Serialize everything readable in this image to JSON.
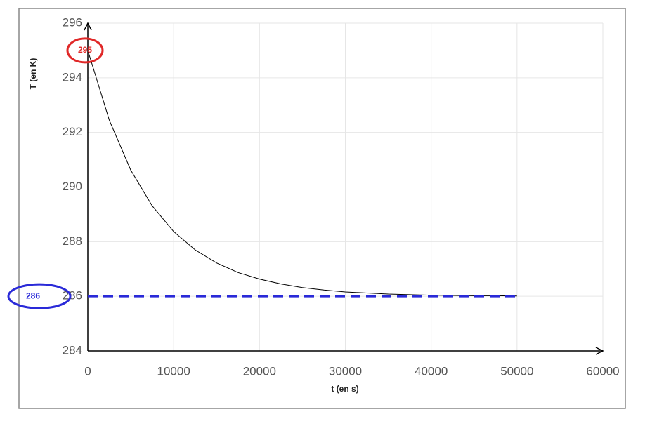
{
  "chart_data": {
    "type": "line",
    "x_label": "t (en s)",
    "y_label": "T (en K)",
    "xlim": [
      0,
      60000
    ],
    "xticks": [
      0,
      10000,
      20000,
      30000,
      40000,
      50000,
      60000
    ],
    "ylim": [
      284,
      296
    ],
    "yticks": [
      284,
      286,
      288,
      290,
      292,
      294,
      296
    ],
    "grid": true,
    "series": [
      {
        "color": "#000000",
        "dashed": false,
        "x": [
          0,
          2500,
          5000,
          7500,
          10000,
          12500,
          15000,
          17500,
          20000,
          22500,
          25000,
          27500,
          30000,
          32500,
          35000,
          37500,
          40000,
          42500,
          45000,
          47500,
          50000
        ],
        "values": [
          295,
          292.45,
          290.62,
          289.31,
          288.37,
          287.7,
          287.22,
          286.87,
          286.63,
          286.45,
          286.32,
          286.23,
          286.16,
          286.12,
          286.08,
          286.06,
          286.04,
          286.03,
          286.02,
          286.02,
          286.01
        ]
      },
      {
        "color": "#2a2ad8",
        "dashed": true,
        "x": [
          0,
          50000
        ],
        "values": [
          286,
          286
        ]
      }
    ],
    "annotations": [
      {
        "text": "295",
        "color": "#e02828"
      },
      {
        "text": "286",
        "color": "#2a2ad8"
      }
    ]
  }
}
